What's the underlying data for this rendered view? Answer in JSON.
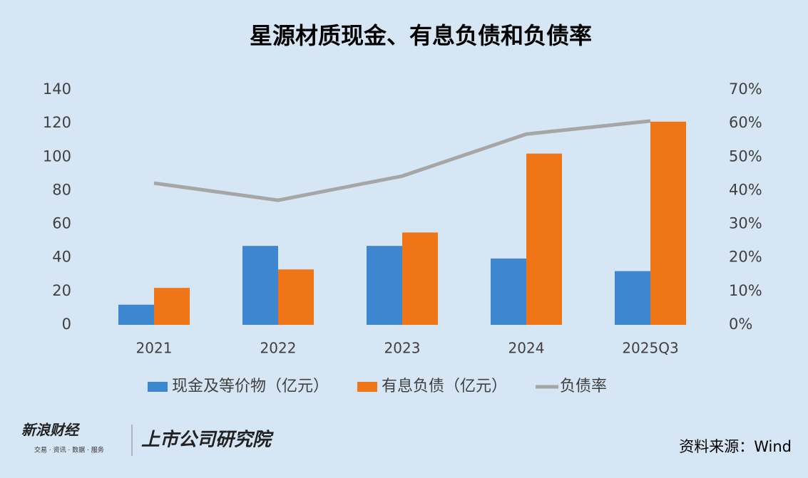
{
  "chart_data": {
    "type": "bar",
    "title": "星源材质现金、有息负债和负债率",
    "categories": [
      "2021",
      "2022",
      "2023",
      "2024",
      "2025Q3"
    ],
    "series": [
      {
        "name": "现金及等价物（亿元）",
        "color": "#3d86d0",
        "values": [
          12,
          47,
          47,
          39.5,
          32
        ]
      },
      {
        "name": "有息负债（亿元）",
        "color": "#f07517",
        "values": [
          22,
          33,
          55,
          102,
          121
        ]
      },
      {
        "name": "负债率",
        "color": "#a6a6a6",
        "type": "line",
        "axis": "y2",
        "values": [
          42.2,
          37.1,
          44.3,
          56.8,
          60.7
        ]
      }
    ],
    "ylim": [
      0,
      140
    ],
    "yticks": [
      0,
      20,
      40,
      60,
      80,
      100,
      120,
      140
    ],
    "y2lim": [
      0,
      70
    ],
    "y2ticks": [
      {
        "value": 0,
        "label": "0%"
      },
      {
        "value": 10,
        "label": "10%"
      },
      {
        "value": 20,
        "label": "20%"
      },
      {
        "value": 30,
        "label": "30%"
      },
      {
        "value": 40,
        "label": "40%"
      },
      {
        "value": 50,
        "label": "50%"
      },
      {
        "value": 60,
        "label": "60%"
      },
      {
        "value": 70,
        "label": "70%"
      }
    ],
    "legend": "bottom"
  },
  "footer": {
    "brand": "新浪财经",
    "brand_sub": "交易 · 资讯 · 数据 · 服务",
    "institute": "上市公司研究院",
    "source": "资料来源：Wind"
  }
}
